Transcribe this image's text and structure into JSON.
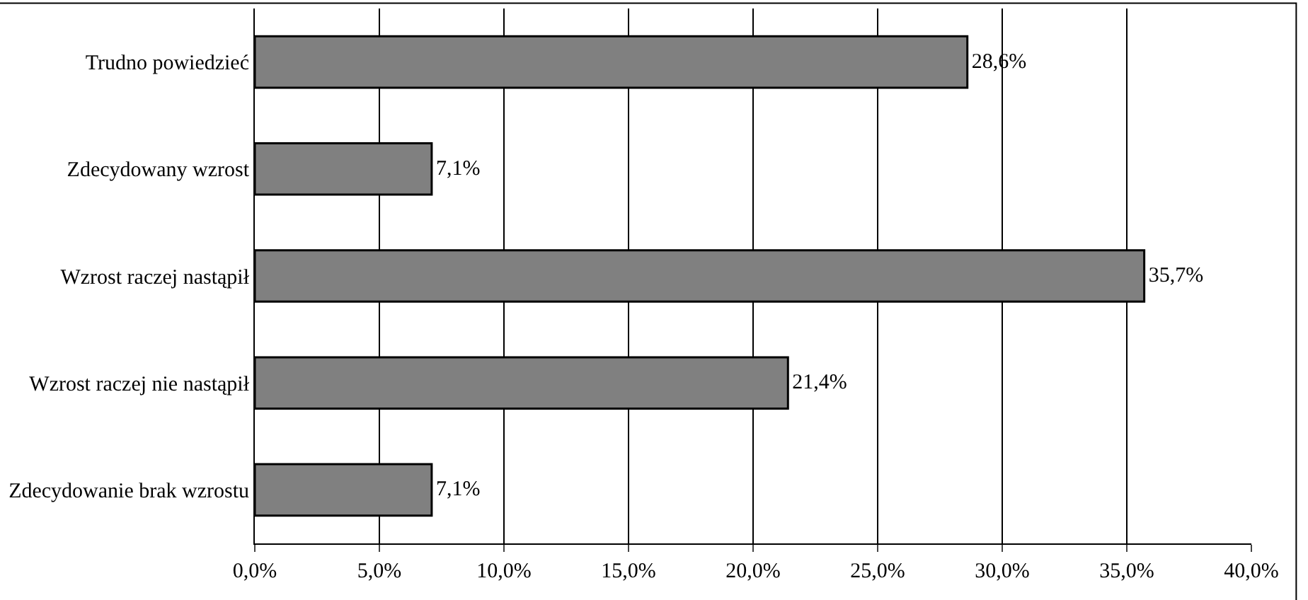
{
  "chart_data": {
    "type": "bar",
    "orientation": "horizontal",
    "categories": [
      "Trudno powiedzieć",
      "Zdecydowany wzrost",
      "Wzrost raczej nastąpił",
      "Wzrost raczej nie nastąpił",
      "Zdecydowanie brak wzrostu"
    ],
    "values": [
      28.6,
      7.1,
      35.7,
      21.4,
      7.1
    ],
    "value_labels": [
      "28,6%",
      "7,1%",
      "35,7%",
      "21,4%",
      "7,1%"
    ],
    "color": "#808080",
    "xlim": [
      0,
      40
    ],
    "xticks": [
      {
        "value": 0,
        "label": "0,0%"
      },
      {
        "value": 5,
        "label": "5,0%"
      },
      {
        "value": 10,
        "label": "10,0%"
      },
      {
        "value": 15,
        "label": "15,0%"
      },
      {
        "value": 20,
        "label": "20,0%"
      },
      {
        "value": 25,
        "label": "25,0%"
      },
      {
        "value": 30,
        "label": "30,0%"
      },
      {
        "value": 35,
        "label": "35,0%"
      },
      {
        "value": 40,
        "label": "40,0%"
      }
    ],
    "grid": "x",
    "legend": false
  }
}
